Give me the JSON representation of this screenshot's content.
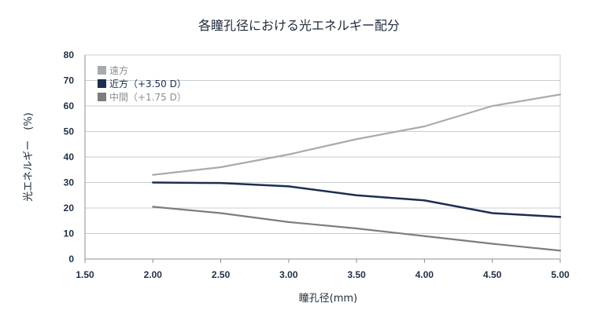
{
  "chart_data": {
    "type": "line",
    "title": "各瞳孔径における光エネルギー配分",
    "xlabel": "瞳孔径(mm)",
    "ylabel": "光エネルギー　(%)",
    "x": [
      2.0,
      2.5,
      3.0,
      3.5,
      4.0,
      4.5,
      5.0
    ],
    "x_ticks": [
      "1.50",
      "2.00",
      "2.50",
      "3.00",
      "3.50",
      "4.00",
      "4.50",
      "5.00"
    ],
    "y_ticks": [
      "0",
      "10",
      "20",
      "30",
      "40",
      "50",
      "60",
      "70",
      "80"
    ],
    "xlim": [
      1.5,
      5.0
    ],
    "ylim": [
      0,
      80
    ],
    "grid": true,
    "legend_position": "top-left",
    "series": [
      {
        "name": "遠方",
        "color": "#a7abb0",
        "values": [
          33,
          36,
          41,
          47,
          52,
          60,
          64.5
        ]
      },
      {
        "name": "近方（+3.50 D）",
        "color": "#1b2f52",
        "values": [
          30,
          29.8,
          28.5,
          25,
          23,
          18,
          16.5
        ]
      },
      {
        "name": "中間（+1.75 D）",
        "color": "#7b7d80",
        "values": [
          20.5,
          18,
          14.5,
          12,
          9,
          6,
          3.3
        ]
      }
    ]
  }
}
